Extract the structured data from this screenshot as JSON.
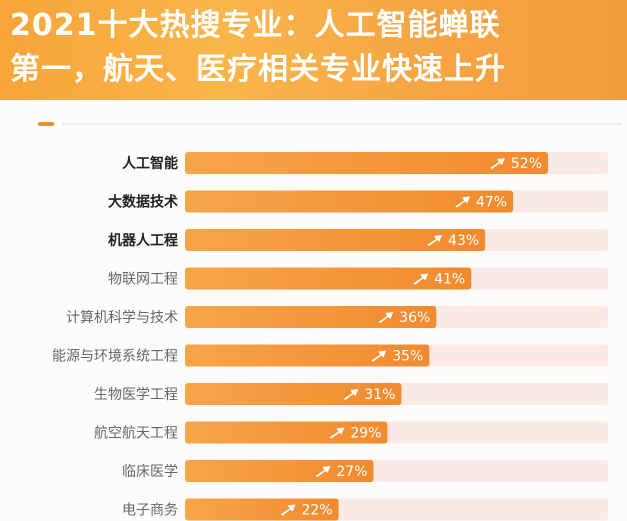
{
  "header": {
    "title_line1": "2021十大热搜专业：人工智能蝉联",
    "title_line2": "第一，航天、医疗相关专业快速上升"
  },
  "colors": {
    "header_bg": "#f7a53a",
    "bar_start": "#f6a54a",
    "bar_end": "#f28a2e",
    "track": "#fbe9e6",
    "label_bold": "#222222",
    "label_normal": "#666666"
  },
  "chart_data": {
    "type": "bar",
    "orientation": "horizontal",
    "categories": [
      "人工智能",
      "大数据技术",
      "机器人工程",
      "物联网工程",
      "计算机科学与技术",
      "能源与环境系统工程",
      "生物医学工程",
      "航空航天工程",
      "临床医学",
      "电子商务"
    ],
    "values": [
      52,
      47,
      43,
      41,
      36,
      35,
      31,
      29,
      27,
      22
    ],
    "value_labels": [
      "52%",
      "47%",
      "43%",
      "41%",
      "36%",
      "35%",
      "31%",
      "29%",
      "27%",
      "22%"
    ],
    "bold_categories": [
      "人工智能",
      "大数据技术",
      "机器人工程"
    ],
    "xlim": [
      0,
      100
    ],
    "unit": "%",
    "grid": false,
    "legend": "none"
  }
}
